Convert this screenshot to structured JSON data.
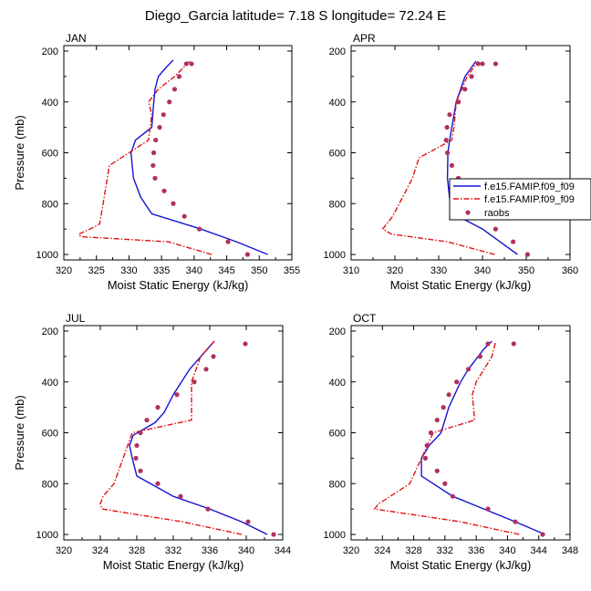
{
  "figure": {
    "title": "Diego_Garcia  latitude= 7.18 S longitude= 72.24 E"
  },
  "legend": {
    "entries": [
      "f.e15.FAMIP.f09_f09",
      "f.e15.FAMIP.f09_f09",
      "raobs"
    ],
    "colors": [
      "#1414d2",
      "#e01414",
      "#b03060"
    ]
  },
  "chart_data": [
    {
      "type": "line",
      "title": "JAN",
      "xlabel": "Moist Static Energy (kJ/kg)",
      "ylabel": "Pressure (mb)",
      "xlim": [
        320,
        355
      ],
      "ylim": [
        1000,
        200
      ],
      "xticks": [
        320,
        325,
        330,
        335,
        340,
        345,
        350,
        355
      ],
      "yticks": [
        200,
        400,
        600,
        800,
        1000
      ],
      "series": [
        {
          "style": "solid",
          "color": "#1414d2",
          "x": [
            351.3,
            346.5,
            341.0,
            333.5,
            331.8,
            330.7,
            330.3,
            331.0,
            333.5,
            333.8,
            334.0,
            334.5,
            335.5,
            336.8
          ],
          "y": [
            1000,
            950,
            900,
            840,
            775,
            700,
            600,
            550,
            500,
            400,
            350,
            300,
            270,
            235
          ]
        },
        {
          "style": "dashed",
          "color": "#e01414",
          "x": [
            342.7,
            336.0,
            322.6,
            322.3,
            324.0,
            325.5,
            327.0,
            333.0,
            333.5,
            333.0,
            334.5,
            337.0,
            339.3
          ],
          "y": [
            1000,
            950,
            930,
            920,
            900,
            880,
            650,
            550,
            450,
            400,
            350,
            300,
            240
          ]
        },
        {
          "style": "markers",
          "color": "#b03060",
          "x": [
            348.2,
            345.2,
            340.8,
            338.5,
            336.8,
            335.4,
            334.0,
            333.7,
            333.8,
            334.1,
            334.7,
            335.3,
            336.2,
            337.0,
            337.7,
            338.8,
            339.6
          ],
          "y": [
            1000,
            950,
            900,
            850,
            800,
            750,
            700,
            650,
            600,
            550,
            500,
            450,
            400,
            350,
            300,
            250,
            250
          ]
        }
      ]
    },
    {
      "type": "line",
      "title": "APR",
      "xlabel": "Moist Static Energy (kJ/kg)",
      "ylabel": "",
      "xlim": [
        310,
        360
      ],
      "ylim": [
        1000,
        200
      ],
      "xticks": [
        310,
        320,
        330,
        340,
        350,
        360
      ],
      "yticks": [
        200,
        400,
        600,
        800,
        1000
      ],
      "series": [
        {
          "style": "solid",
          "color": "#1414d2",
          "x": [
            348.0,
            344.0,
            340.0,
            334.5,
            332.5,
            332.0,
            332.1,
            332.5,
            333.0,
            334.0,
            336.0,
            338.5
          ],
          "y": [
            1000,
            950,
            900,
            850,
            780,
            700,
            600,
            550,
            500,
            400,
            300,
            240
          ]
        },
        {
          "style": "dashed",
          "color": "#e01414",
          "x": [
            342.8,
            332.0,
            319.2,
            317.2,
            319.5,
            324.0,
            325.5,
            333.0,
            333.5,
            334.0,
            336.5,
            339.0
          ],
          "y": [
            1000,
            950,
            920,
            900,
            850,
            700,
            620,
            550,
            500,
            400,
            300,
            240
          ]
        },
        {
          "style": "markers",
          "color": "#b03060",
          "x": [
            350.3,
            347.0,
            343.0,
            338.9,
            337.0,
            335.5,
            334.5,
            333.0,
            332.0,
            331.7,
            331.9,
            332.5,
            334.5,
            336.0,
            337.5,
            339.0,
            340.0,
            343.0
          ],
          "y": [
            1000,
            950,
            900,
            850,
            800,
            750,
            700,
            650,
            600,
            550,
            500,
            450,
            400,
            350,
            300,
            250,
            250,
            250
          ]
        }
      ]
    },
    {
      "type": "line",
      "title": "JUL",
      "xlabel": "Moist Static Energy (kJ/kg)",
      "ylabel": "Pressure (mb)",
      "xlim": [
        320,
        344
      ],
      "ylim": [
        1000,
        200
      ],
      "xticks": [
        320,
        324,
        328,
        332,
        336,
        340,
        344
      ],
      "yticks": [
        200,
        400,
        600,
        800,
        1000
      ],
      "series": [
        {
          "style": "solid",
          "color": "#1414d2",
          "x": [
            342.3,
            339.5,
            336.0,
            332.0,
            328.0,
            327.5,
            327.2,
            327.6,
            330.0,
            331.0,
            332.0,
            333.8,
            336.5
          ],
          "y": [
            1000,
            950,
            900,
            850,
            770,
            700,
            650,
            610,
            560,
            520,
            450,
            350,
            240
          ]
        },
        {
          "style": "dashed",
          "color": "#e01414",
          "x": [
            339.5,
            333.0,
            324.2,
            324.0,
            324.3,
            325.5,
            327.5,
            334.0,
            334.0,
            334.0,
            335.0,
            336.5
          ],
          "y": [
            1000,
            950,
            900,
            880,
            850,
            800,
            600,
            550,
            450,
            400,
            300,
            240
          ]
        },
        {
          "style": "markers",
          "color": "#b03060",
          "x": [
            343.0,
            340.2,
            335.8,
            332.8,
            330.3,
            328.4,
            327.9,
            328.0,
            328.4,
            329.1,
            330.3,
            332.4,
            334.3,
            335.6,
            336.4,
            339.9
          ],
          "y": [
            1000,
            950,
            900,
            850,
            800,
            750,
            700,
            650,
            600,
            550,
            500,
            450,
            400,
            350,
            300,
            250
          ]
        }
      ]
    },
    {
      "type": "line",
      "title": "OCT",
      "xlabel": "Moist Static Energy (kJ/kg)",
      "ylabel": "",
      "xlim": [
        320,
        348
      ],
      "ylim": [
        1000,
        200
      ],
      "xticks": [
        320,
        324,
        328,
        332,
        336,
        340,
        344,
        348
      ],
      "yticks": [
        200,
        400,
        600,
        800,
        1000
      ],
      "series": [
        {
          "style": "solid",
          "color": "#1414d2",
          "x": [
            344.8,
            341.0,
            337.0,
            333.0,
            329.0,
            329.0,
            330.0,
            331.5,
            332.5,
            334.0,
            335.0,
            337.0,
            338.0
          ],
          "y": [
            1000,
            950,
            900,
            850,
            770,
            700,
            650,
            600,
            500,
            400,
            350,
            270,
            240
          ]
        },
        {
          "style": "dashed",
          "color": "#e01414",
          "x": [
            341.5,
            334.0,
            323.0,
            323.5,
            325.0,
            327.5,
            330.5,
            335.8,
            335.5,
            336.0,
            338.0,
            338.5
          ],
          "y": [
            1000,
            950,
            900,
            880,
            850,
            800,
            600,
            550,
            450,
            400,
            300,
            240
          ]
        },
        {
          "style": "markers",
          "color": "#b03060",
          "x": [
            344.5,
            341.0,
            337.5,
            333.0,
            332.0,
            331.0,
            329.5,
            329.7,
            330.2,
            331.0,
            331.8,
            332.5,
            333.5,
            335.0,
            336.5,
            337.5,
            340.8
          ],
          "y": [
            1000,
            950,
            900,
            850,
            800,
            750,
            700,
            650,
            600,
            550,
            500,
            450,
            400,
            350,
            300,
            250,
            250
          ]
        }
      ]
    }
  ]
}
